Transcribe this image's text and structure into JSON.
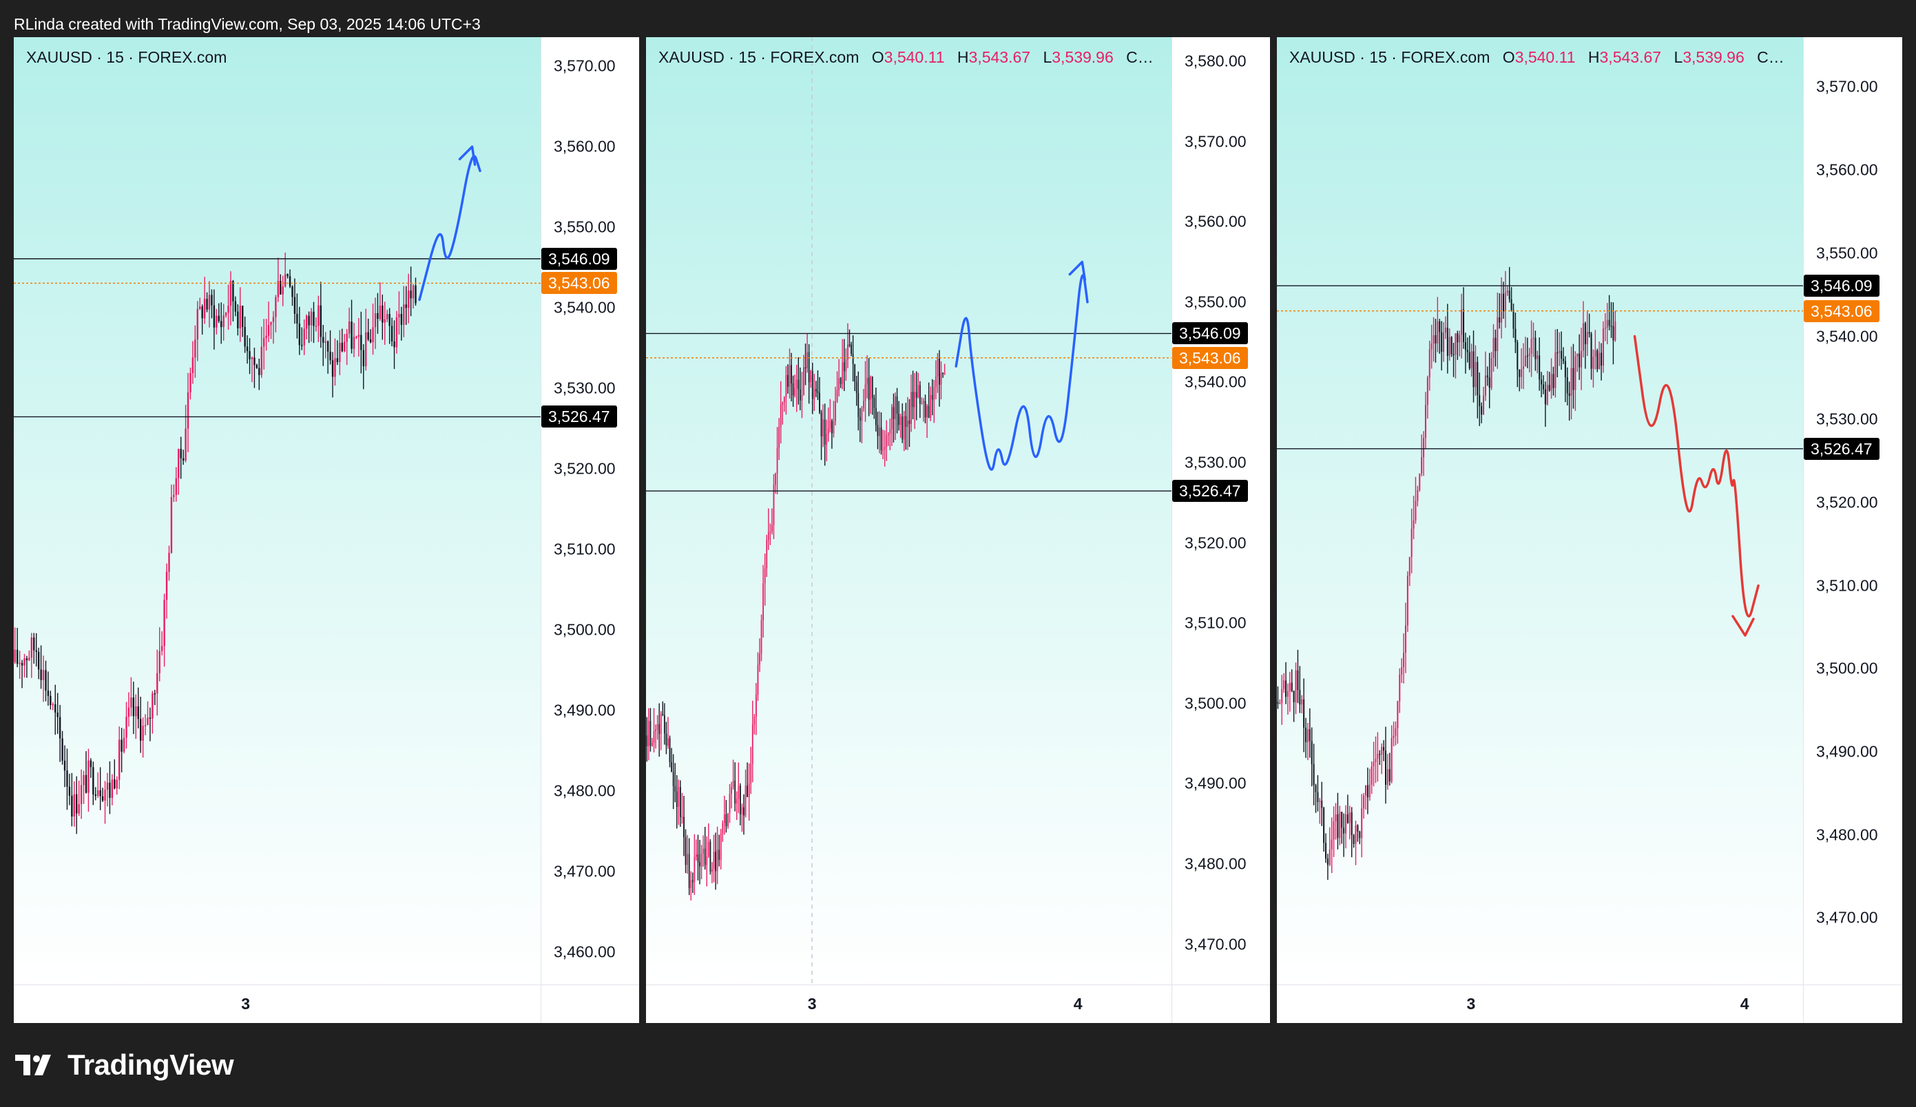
{
  "header": {
    "text": "RLinda created with TradingView.com, Sep 03, 2025 14:06 UTC+3"
  },
  "brand": {
    "name": "TradingView",
    "icon": "tradingview-logo-icon"
  },
  "colors": {
    "up": "#e91e63",
    "down": "#131722",
    "level_line": "#131722",
    "current_line": "#f57c00",
    "bull_path": "#2962ff",
    "bear_path": "#e53935"
  },
  "panels": [
    {
      "legend": {
        "symbol": "XAUUSD · 15 · FOREX.com",
        "ohlc": []
      },
      "price_ticks": [
        "3,570.00",
        "3,560.00",
        "3,550.00",
        "3,540.00",
        "3,530.00",
        "3,520.00",
        "3,510.00",
        "3,500.00",
        "3,490.00",
        "3,480.00",
        "3,470.00",
        "3,460.00"
      ],
      "price_range": [
        3456.0,
        3573.6
      ],
      "levels": [
        {
          "value": 3546.09,
          "label": "3,546.09",
          "style": "black"
        },
        {
          "value": 3543.06,
          "label": "3,543.06",
          "style": "orange"
        },
        {
          "value": 3526.47,
          "label": "3,526.47",
          "style": "black"
        }
      ],
      "time_labels": [
        {
          "text": "3",
          "frac": 0.44
        }
      ],
      "projection": {
        "color": "bull",
        "points": [
          [
            0.77,
            3541
          ],
          [
            0.81,
            3551
          ],
          [
            0.82,
            3545
          ],
          [
            0.84,
            3549
          ],
          [
            0.87,
            3560
          ],
          [
            0.885,
            3557
          ]
        ],
        "arrow": true
      }
    },
    {
      "legend": {
        "symbol": "XAUUSD · 15 · FOREX.com",
        "ohlc": [
          {
            "k": "O",
            "v": "3,540.11"
          },
          {
            "k": "H",
            "v": "3,543.67"
          },
          {
            "k": "L",
            "v": "3,539.96"
          },
          {
            "k": "C…",
            "v": ""
          }
        ]
      },
      "price_ticks": [
        "3,580.00",
        "3,570.00",
        "3,560.00",
        "3,550.00",
        "3,540.00",
        "3,530.00",
        "3,520.00",
        "3,510.00",
        "3,500.00",
        "3,490.00",
        "3,480.00",
        "3,470.00"
      ],
      "price_range": [
        3465.0,
        3583.0
      ],
      "levels": [
        {
          "value": 3546.09,
          "label": "3,546.09",
          "style": "black"
        },
        {
          "value": 3543.06,
          "label": "3,543.06",
          "style": "orange"
        },
        {
          "value": 3526.47,
          "label": "3,526.47",
          "style": "black"
        }
      ],
      "time_labels": [
        {
          "text": "3",
          "frac": 0.316
        },
        {
          "text": "4",
          "frac": 0.822
        }
      ],
      "projection": {
        "color": "bull",
        "points": [
          [
            0.59,
            3542
          ],
          [
            0.61,
            3550
          ],
          [
            0.62,
            3542
          ],
          [
            0.655,
            3527
          ],
          [
            0.67,
            3533
          ],
          [
            0.685,
            3528
          ],
          [
            0.72,
            3540
          ],
          [
            0.74,
            3528
          ],
          [
            0.765,
            3538
          ],
          [
            0.79,
            3530
          ],
          [
            0.815,
            3545
          ],
          [
            0.83,
            3555
          ],
          [
            0.84,
            3550
          ]
        ],
        "arrow": true
      }
    },
    {
      "legend": {
        "symbol": "XAUUSD · 15 · FOREX.com",
        "ohlc": [
          {
            "k": "O",
            "v": "3,540.11"
          },
          {
            "k": "H",
            "v": "3,543.67"
          },
          {
            "k": "L",
            "v": "3,539.96"
          },
          {
            "k": "C…",
            "v": ""
          }
        ]
      },
      "price_ticks": [
        "3,570.00",
        "3,560.00",
        "3,550.00",
        "3,540.00",
        "3,530.00",
        "3,520.00",
        "3,510.00",
        "3,500.00",
        "3,490.00",
        "3,480.00",
        "3,470.00"
      ],
      "price_range": [
        3462.0,
        3576.0
      ],
      "levels": [
        {
          "value": 3546.09,
          "label": "3,546.09",
          "style": "black"
        },
        {
          "value": 3543.06,
          "label": "3,543.06",
          "style": "orange"
        },
        {
          "value": 3526.47,
          "label": "3,526.47",
          "style": "black"
        }
      ],
      "time_labels": [
        {
          "text": "3",
          "frac": 0.369
        },
        {
          "text": "4",
          "frac": 0.889
        }
      ],
      "projection": {
        "color": "bear",
        "points": [
          [
            0.68,
            3540
          ],
          [
            0.71,
            3526
          ],
          [
            0.745,
            3538
          ],
          [
            0.78,
            3516
          ],
          [
            0.8,
            3524
          ],
          [
            0.815,
            3521
          ],
          [
            0.83,
            3525
          ],
          [
            0.84,
            3521
          ],
          [
            0.855,
            3528
          ],
          [
            0.865,
            3521
          ],
          [
            0.87,
            3524
          ],
          [
            0.89,
            3504
          ],
          [
            0.915,
            3510
          ]
        ],
        "arrow": true
      }
    }
  ]
}
